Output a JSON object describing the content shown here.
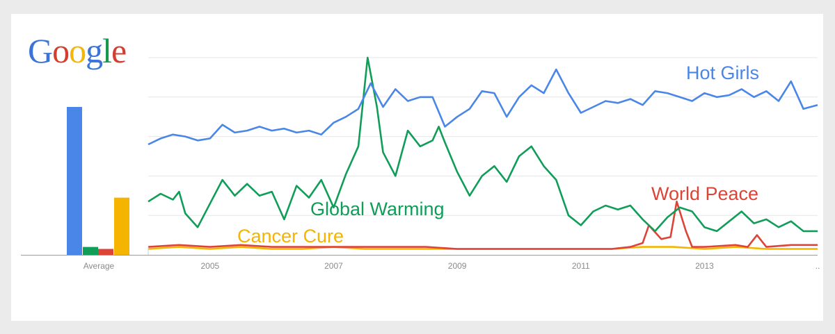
{
  "logo": {
    "letters": [
      "G",
      "o",
      "o",
      "g",
      "l",
      "e"
    ],
    "colors": [
      "#3b73d6",
      "#d23f31",
      "#f2b70a",
      "#3b73d6",
      "#159a4b",
      "#d23f31"
    ]
  },
  "chart_data": {
    "type": "line",
    "title": "",
    "xlabel": "",
    "ylabel": "",
    "xlim": [
      2004.0,
      2014.83
    ],
    "ylim": [
      0,
      100
    ],
    "grid": true,
    "x_ticks": [
      "2005",
      "2007",
      "2009",
      "2011",
      "2013",
      ".."
    ],
    "x_tick_values": [
      2005,
      2007,
      2009,
      2011,
      2013,
      2014.83
    ],
    "average": {
      "label": "Average",
      "values": [
        75,
        4,
        3,
        29
      ]
    },
    "series": [
      {
        "name": "Hot Girls",
        "color": "#4a86e8",
        "points": [
          [
            2004.0,
            56
          ],
          [
            2004.2,
            59
          ],
          [
            2004.4,
            61
          ],
          [
            2004.6,
            60
          ],
          [
            2004.8,
            58
          ],
          [
            2005.0,
            59
          ],
          [
            2005.2,
            66
          ],
          [
            2005.4,
            62
          ],
          [
            2005.6,
            63
          ],
          [
            2005.8,
            65
          ],
          [
            2006.0,
            63
          ],
          [
            2006.2,
            64
          ],
          [
            2006.4,
            62
          ],
          [
            2006.6,
            63
          ],
          [
            2006.8,
            61
          ],
          [
            2007.0,
            67
          ],
          [
            2007.2,
            70
          ],
          [
            2007.4,
            74
          ],
          [
            2007.6,
            87
          ],
          [
            2007.8,
            75
          ],
          [
            2008.0,
            84
          ],
          [
            2008.2,
            78
          ],
          [
            2008.4,
            80
          ],
          [
            2008.6,
            80
          ],
          [
            2008.8,
            65
          ],
          [
            2009.0,
            70
          ],
          [
            2009.2,
            74
          ],
          [
            2009.4,
            83
          ],
          [
            2009.6,
            82
          ],
          [
            2009.8,
            70
          ],
          [
            2010.0,
            80
          ],
          [
            2010.2,
            86
          ],
          [
            2010.4,
            82
          ],
          [
            2010.6,
            94
          ],
          [
            2010.8,
            82
          ],
          [
            2011.0,
            72
          ],
          [
            2011.2,
            75
          ],
          [
            2011.4,
            78
          ],
          [
            2011.6,
            77
          ],
          [
            2011.8,
            79
          ],
          [
            2012.0,
            76
          ],
          [
            2012.2,
            83
          ],
          [
            2012.4,
            82
          ],
          [
            2012.6,
            80
          ],
          [
            2012.8,
            78
          ],
          [
            2013.0,
            82
          ],
          [
            2013.2,
            80
          ],
          [
            2013.4,
            81
          ],
          [
            2013.6,
            84
          ],
          [
            2013.8,
            80
          ],
          [
            2014.0,
            83
          ],
          [
            2014.2,
            78
          ],
          [
            2014.4,
            88
          ],
          [
            2014.6,
            74
          ],
          [
            2014.83,
            76
          ]
        ]
      },
      {
        "name": "Global Warming",
        "color": "#0f9d58",
        "points": [
          [
            2004.0,
            27
          ],
          [
            2004.2,
            31
          ],
          [
            2004.4,
            28
          ],
          [
            2004.5,
            32
          ],
          [
            2004.6,
            21
          ],
          [
            2004.8,
            14
          ],
          [
            2005.0,
            26
          ],
          [
            2005.2,
            38
          ],
          [
            2005.4,
            30
          ],
          [
            2005.6,
            36
          ],
          [
            2005.8,
            30
          ],
          [
            2006.0,
            32
          ],
          [
            2006.2,
            18
          ],
          [
            2006.4,
            35
          ],
          [
            2006.6,
            29
          ],
          [
            2006.8,
            38
          ],
          [
            2007.0,
            24
          ],
          [
            2007.2,
            41
          ],
          [
            2007.4,
            55
          ],
          [
            2007.55,
            100
          ],
          [
            2007.7,
            75
          ],
          [
            2007.8,
            52
          ],
          [
            2008.0,
            40
          ],
          [
            2008.2,
            63
          ],
          [
            2008.4,
            55
          ],
          [
            2008.6,
            58
          ],
          [
            2008.7,
            65
          ],
          [
            2008.8,
            57
          ],
          [
            2009.0,
            42
          ],
          [
            2009.2,
            30
          ],
          [
            2009.4,
            40
          ],
          [
            2009.6,
            45
          ],
          [
            2009.8,
            37
          ],
          [
            2010.0,
            50
          ],
          [
            2010.2,
            55
          ],
          [
            2010.4,
            45
          ],
          [
            2010.6,
            38
          ],
          [
            2010.8,
            20
          ],
          [
            2011.0,
            15
          ],
          [
            2011.2,
            22
          ],
          [
            2011.4,
            25
          ],
          [
            2011.6,
            23
          ],
          [
            2011.8,
            25
          ],
          [
            2012.0,
            18
          ],
          [
            2012.2,
            12
          ],
          [
            2012.4,
            19
          ],
          [
            2012.6,
            24
          ],
          [
            2012.8,
            22
          ],
          [
            2013.0,
            14
          ],
          [
            2013.2,
            12
          ],
          [
            2013.4,
            17
          ],
          [
            2013.6,
            22
          ],
          [
            2013.8,
            16
          ],
          [
            2014.0,
            18
          ],
          [
            2014.2,
            14
          ],
          [
            2014.4,
            17
          ],
          [
            2014.6,
            12
          ],
          [
            2014.83,
            12
          ]
        ]
      },
      {
        "name": "World Peace",
        "color": "#db4437",
        "points": [
          [
            2004.0,
            4
          ],
          [
            2004.5,
            5
          ],
          [
            2005.0,
            4
          ],
          [
            2005.5,
            5
          ],
          [
            2006.0,
            4
          ],
          [
            2006.5,
            4
          ],
          [
            2007.0,
            4
          ],
          [
            2007.5,
            4
          ],
          [
            2008.0,
            4
          ],
          [
            2008.5,
            4
          ],
          [
            2009.0,
            3
          ],
          [
            2009.5,
            3
          ],
          [
            2010.0,
            3
          ],
          [
            2010.5,
            3
          ],
          [
            2011.0,
            3
          ],
          [
            2011.5,
            3
          ],
          [
            2011.8,
            4
          ],
          [
            2012.0,
            6
          ],
          [
            2012.1,
            15
          ],
          [
            2012.3,
            8
          ],
          [
            2012.45,
            9
          ],
          [
            2012.55,
            27
          ],
          [
            2012.7,
            12
          ],
          [
            2012.8,
            4
          ],
          [
            2013.0,
            4
          ],
          [
            2013.5,
            5
          ],
          [
            2013.7,
            4
          ],
          [
            2013.85,
            10
          ],
          [
            2014.0,
            4
          ],
          [
            2014.4,
            5
          ],
          [
            2014.83,
            5
          ]
        ]
      },
      {
        "name": "Cancer Cure",
        "color": "#f4b400",
        "points": [
          [
            2004.0,
            3
          ],
          [
            2004.5,
            4
          ],
          [
            2005.0,
            3
          ],
          [
            2005.5,
            4
          ],
          [
            2006.0,
            3
          ],
          [
            2006.5,
            3
          ],
          [
            2007.0,
            4
          ],
          [
            2007.5,
            3
          ],
          [
            2008.0,
            3
          ],
          [
            2008.5,
            3
          ],
          [
            2009.0,
            3
          ],
          [
            2009.5,
            3
          ],
          [
            2010.0,
            3
          ],
          [
            2010.5,
            3
          ],
          [
            2011.0,
            3
          ],
          [
            2011.5,
            3
          ],
          [
            2012.0,
            4
          ],
          [
            2012.5,
            4
          ],
          [
            2013.0,
            3
          ],
          [
            2013.5,
            4
          ],
          [
            2014.0,
            3
          ],
          [
            2014.5,
            3
          ],
          [
            2014.83,
            3
          ]
        ]
      }
    ]
  }
}
